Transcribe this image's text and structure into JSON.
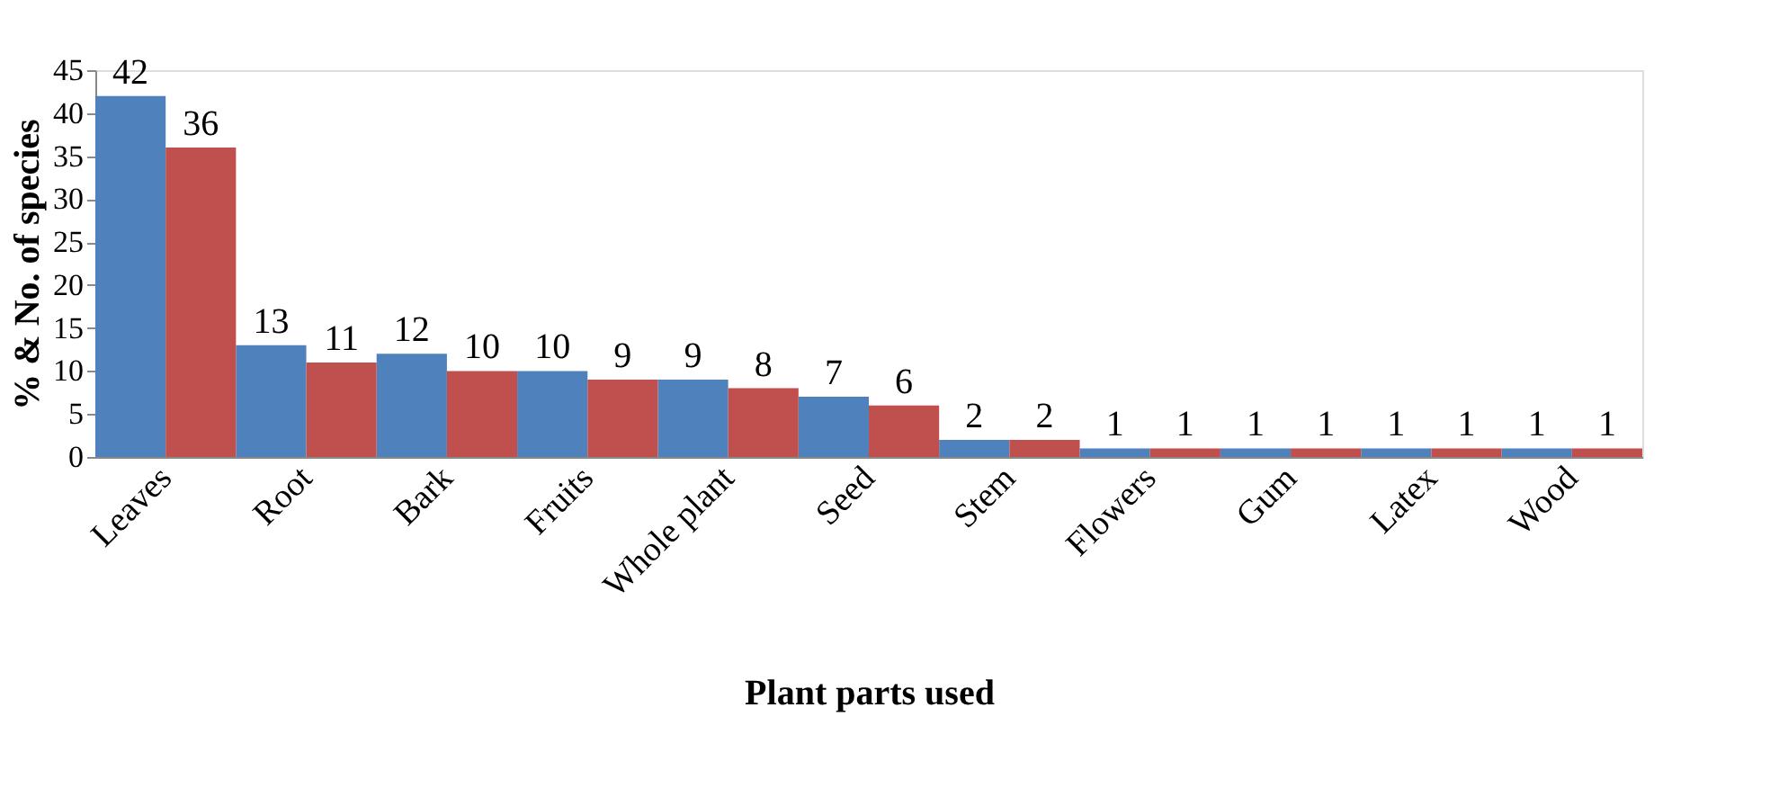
{
  "chart_data": {
    "type": "bar",
    "xlabel": "Plant parts used",
    "ylabel": "% & No. of species",
    "categories": [
      "Leaves",
      "Root",
      "Bark",
      "Fruits",
      "Whole plant",
      "Seed",
      "Stem",
      "Flowers",
      "Gum",
      "Latex",
      "Wood"
    ],
    "series": [
      {
        "color": "#4f81bd",
        "values": [
          42,
          13,
          12,
          10,
          9,
          7,
          2,
          1,
          1,
          1,
          1
        ]
      },
      {
        "color": "#c0504d",
        "values": [
          36,
          11,
          10,
          9,
          8,
          6,
          2,
          1,
          1,
          1,
          1
        ]
      }
    ],
    "ylim": [
      0,
      45
    ],
    "yticks": [
      0,
      5,
      10,
      15,
      20,
      25,
      30,
      35,
      40,
      45
    ],
    "grid": false,
    "legend": false,
    "data_labels": true
  }
}
